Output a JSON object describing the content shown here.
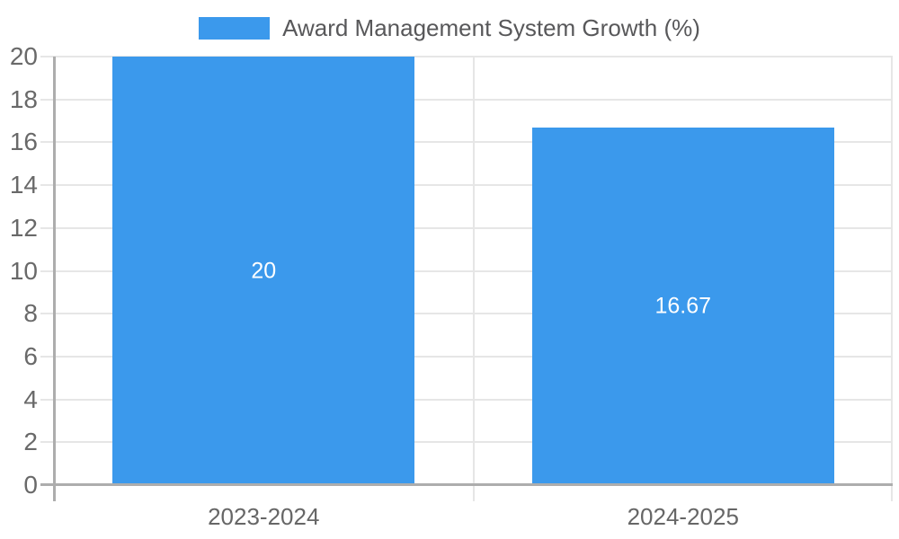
{
  "chart_data": {
    "type": "bar",
    "title": "",
    "legend": {
      "label": "Award Management System Growth (%)",
      "position": "top-center"
    },
    "categories": [
      "2023-2024",
      "2024-2025"
    ],
    "series": [
      {
        "name": "Award Management System Growth (%)",
        "values": [
          20,
          16.67
        ],
        "color": "#3b99ec"
      }
    ],
    "bar_value_labels": [
      "20",
      "16.67"
    ],
    "xlabel": "",
    "ylabel": "",
    "ylim": [
      0,
      20
    ],
    "yticks": [
      0,
      2,
      4,
      6,
      8,
      10,
      12,
      14,
      16,
      18,
      20
    ],
    "grid": true,
    "colors": {
      "bar": "#3b99ec",
      "gridline": "#e6e6e6",
      "axis_line": "#adadad",
      "tick_label": "#696969",
      "category_label": "#666666",
      "legend_text": "#58585a",
      "bar_value_label": "#ffffff",
      "background": "#ffffff"
    }
  }
}
